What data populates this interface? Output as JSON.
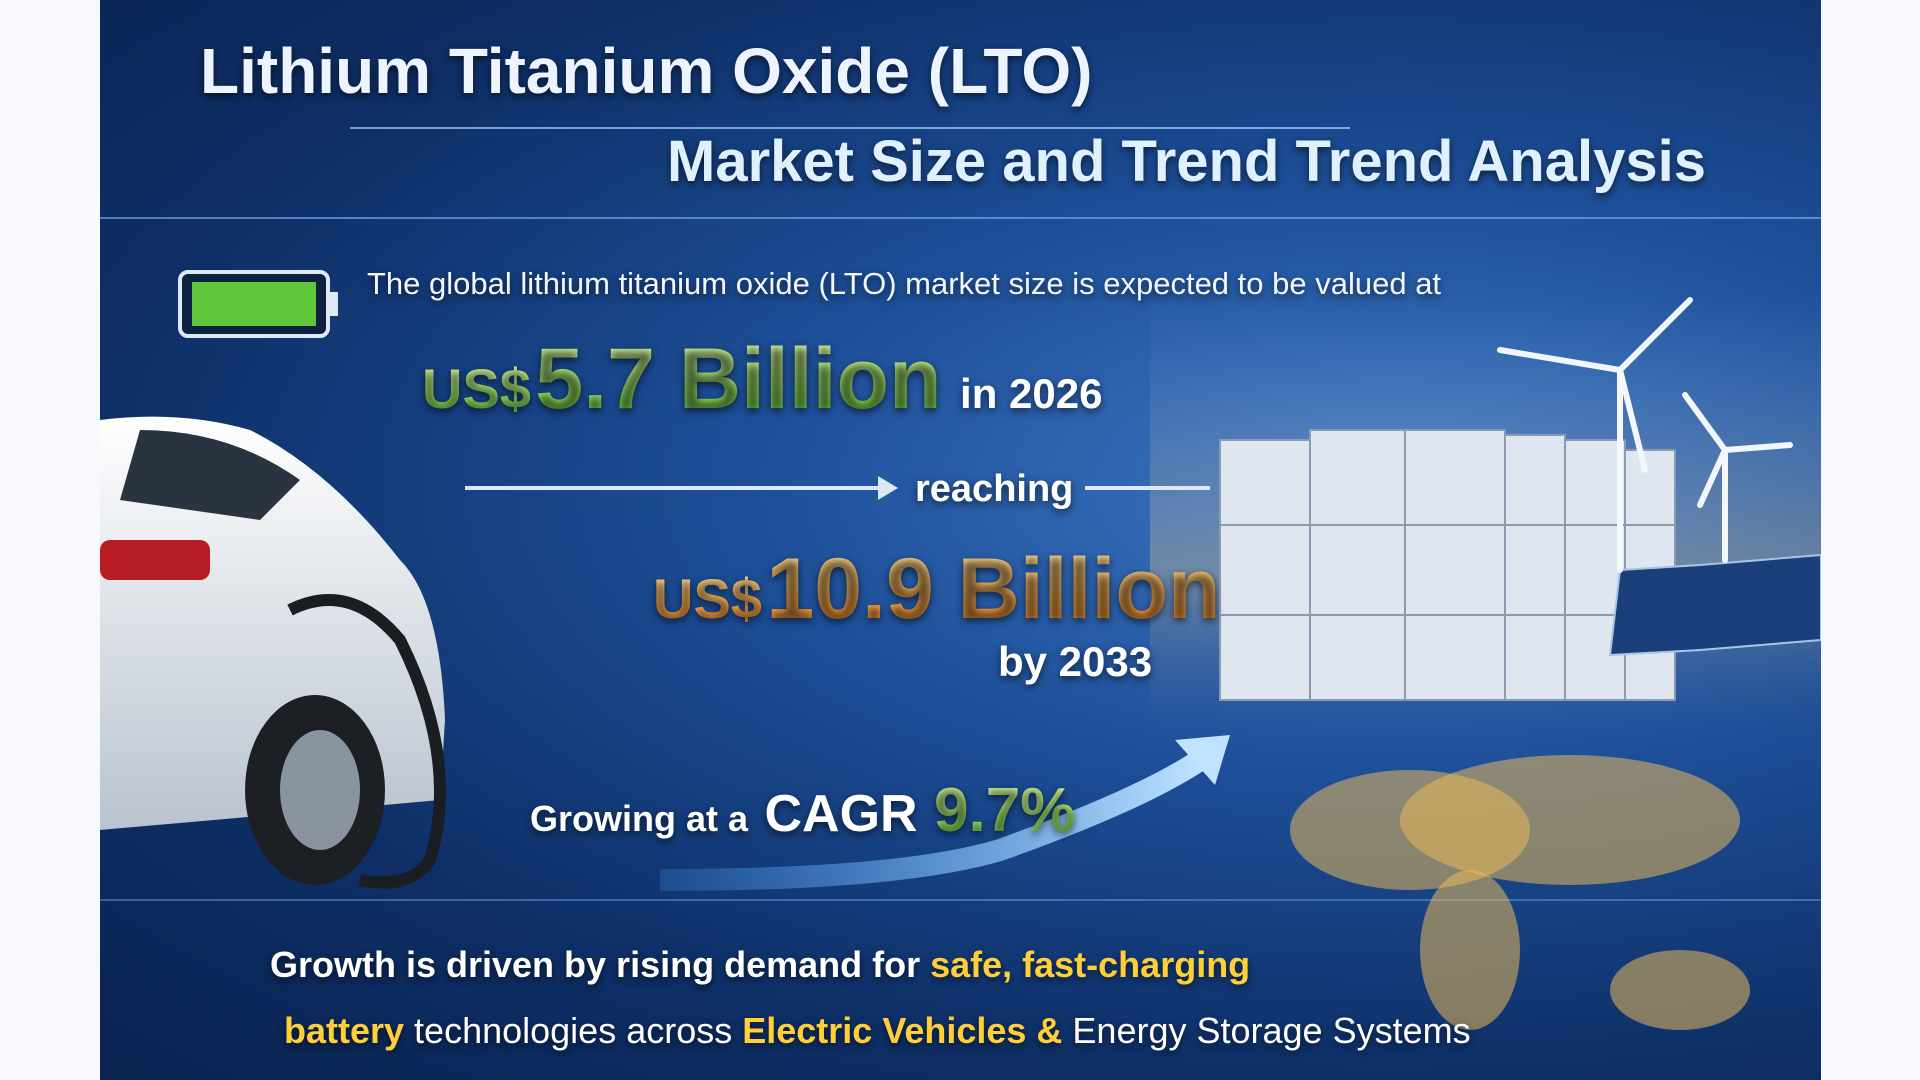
{
  "header": {
    "title": "Lithium Titanium Oxide (LTO)",
    "subtitle": "Market Size and Trend Trend Analysis"
  },
  "intro": "The global lithium titanium oxide (LTO) market size is expected to be valued at",
  "value_2026": {
    "currency": "US$",
    "amount": "5.7 Billion",
    "period": "in 2026"
  },
  "reaching": "reaching",
  "value_2033": {
    "currency": "US$",
    "amount": "10.9 Billion",
    "period": "by 2033"
  },
  "cagr": {
    "prefix": "Growing at a",
    "label": "CAGR",
    "value": "9.7%"
  },
  "footer": {
    "line1": [
      "Growth is driven by rising demand for",
      "safe, fast-charging"
    ],
    "line2": [
      "battery",
      "technologies across",
      "Electric Vehicles &",
      "Energy Storage Systems"
    ]
  }
}
